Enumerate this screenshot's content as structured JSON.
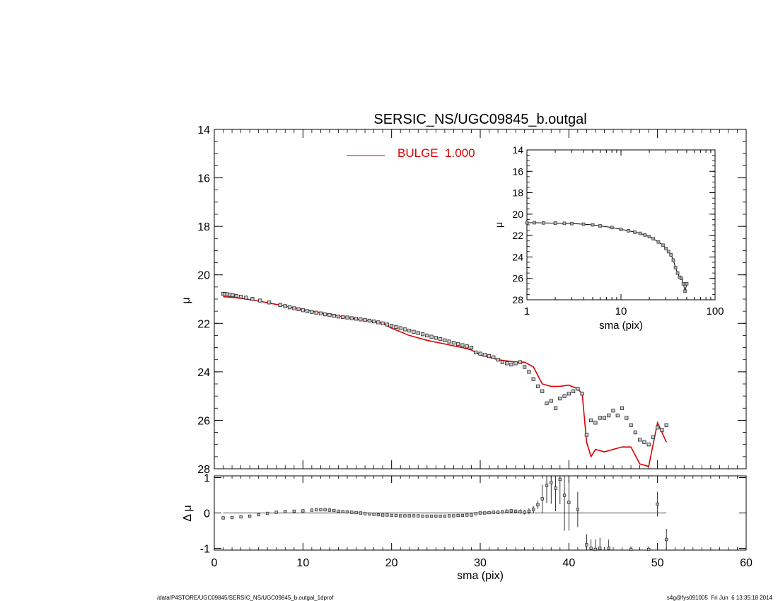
{
  "chart_data": [
    {
      "type": "scatter",
      "panel": "main",
      "title": "SERSIC_NS/UGC09845_b.outgal",
      "xlabel": "sma (pix)",
      "ylabel": "μ",
      "xlim": [
        0,
        60
      ],
      "ylim": [
        28,
        14
      ],
      "y_inverted": true,
      "yticks": [
        "14",
        "16",
        "18",
        "20",
        "22",
        "24",
        "26",
        "28"
      ],
      "xticks": [
        "0",
        "10",
        "20",
        "30",
        "40",
        "50",
        "60"
      ],
      "legend": {
        "position": "top-center",
        "label": "BULGE  1.000",
        "color": "#dd0000"
      },
      "series": [
        {
          "name": "",
          "kind": "data",
          "marker": "square",
          "color": "#000000",
          "x": [
            1.0,
            1.2,
            1.44,
            1.73,
            2.07,
            2.49,
            2.99,
            3.58,
            4.3,
            5.16,
            6.19,
            7.43,
            8.0,
            8.5,
            9.0,
            9.5,
            10.0,
            10.5,
            11.0,
            11.5,
            12.0,
            12.5,
            13.0,
            13.5,
            14.0,
            14.5,
            15.0,
            15.5,
            16.0,
            16.5,
            17.0,
            17.5,
            18.0,
            18.5,
            19.0,
            19.5,
            20.0,
            20.5,
            21.0,
            21.5,
            22.0,
            22.5,
            23.0,
            23.5,
            24.0,
            24.5,
            25.0,
            25.5,
            26.0,
            26.5,
            27.0,
            27.5,
            28.0,
            28.5,
            29.0,
            29.5,
            30.0,
            30.5,
            31.0,
            31.5,
            32.0,
            32.5,
            33.0,
            33.5,
            34.0,
            34.5,
            35.0,
            35.5,
            36.0,
            36.5,
            37.0,
            37.5,
            38.0,
            38.5,
            39.0,
            39.5,
            40.0,
            40.5,
            41.0,
            41.5,
            42.0,
            42.5,
            43.0,
            43.5,
            44.0,
            44.5,
            45.0,
            45.5,
            46.0,
            46.5,
            47.0,
            47.5,
            48.0,
            48.5,
            49.0,
            49.5,
            50.0,
            50.5,
            51.0
          ],
          "y": [
            20.78,
            20.79,
            20.8,
            20.82,
            20.84,
            20.87,
            20.9,
            20.94,
            20.99,
            21.06,
            21.14,
            21.24,
            21.29,
            21.34,
            21.38,
            21.42,
            21.46,
            21.5,
            21.53,
            21.56,
            21.59,
            21.63,
            21.66,
            21.69,
            21.72,
            21.74,
            21.76,
            21.79,
            21.81,
            21.84,
            21.86,
            21.89,
            21.92,
            21.96,
            22.0,
            22.05,
            22.1,
            22.15,
            22.2,
            22.25,
            22.3,
            22.35,
            22.4,
            22.45,
            22.5,
            22.55,
            22.6,
            22.65,
            22.7,
            22.75,
            22.8,
            22.85,
            22.9,
            22.95,
            23.0,
            23.2,
            23.25,
            23.3,
            23.35,
            23.4,
            23.5,
            23.6,
            23.65,
            23.7,
            23.65,
            23.6,
            23.8,
            24.0,
            24.3,
            24.6,
            24.8,
            25.3,
            25.2,
            25.5,
            25.1,
            25.0,
            24.9,
            24.8,
            24.7,
            24.9,
            26.6,
            26.0,
            26.1,
            25.9,
            25.9,
            25.8,
            25.6,
            25.8,
            25.5,
            25.9,
            26.2,
            26.5,
            26.8,
            26.9,
            27.0,
            26.7,
            26.3,
            26.4,
            26.2
          ],
          "x_mono": [],
          "y_mono": []
        },
        {
          "name": "BULGE  1.000",
          "kind": "model",
          "color": "#dd0000",
          "x": [
            1.0,
            2.0,
            3.0,
            4.0,
            5.0,
            6.0,
            7.0,
            8.0,
            9.0,
            10.0,
            11.0,
            12.0,
            13.0,
            14.0,
            15.0,
            16.0,
            17.0,
            18.0,
            19.0,
            20.0,
            21.0,
            22.0,
            23.0,
            24.0,
            25.0,
            26.0,
            27.0,
            28.0,
            29.0,
            30.0,
            31.0,
            32.0,
            33.0,
            34.0,
            35.0,
            36.0,
            37.0,
            38.0,
            39.0,
            40.0,
            41.0,
            41.5,
            42.0,
            42.5,
            43.0,
            44.0,
            45.0,
            46.0,
            47.0,
            48.0,
            49.0,
            50.0,
            51.0
          ],
          "y": [
            20.9,
            20.93,
            20.97,
            21.02,
            21.08,
            21.15,
            21.22,
            21.29,
            21.36,
            21.43,
            21.5,
            21.57,
            21.63,
            21.7,
            21.76,
            21.82,
            21.87,
            21.92,
            22.0,
            22.2,
            22.35,
            22.5,
            22.6,
            22.7,
            22.78,
            22.85,
            22.93,
            23.0,
            23.1,
            23.3,
            23.4,
            23.5,
            23.55,
            23.6,
            23.6,
            23.8,
            24.5,
            24.6,
            24.6,
            24.55,
            24.7,
            24.9,
            26.9,
            27.5,
            27.2,
            27.3,
            27.2,
            27.1,
            27.1,
            27.8,
            27.9,
            26.1,
            26.9
          ]
        }
      ]
    },
    {
      "type": "scatter",
      "panel": "inset",
      "title": "",
      "xlabel": "sma (pix)",
      "ylabel": "μ",
      "xscale": "log",
      "xlim": [
        1,
        100
      ],
      "ylim": [
        28,
        14
      ],
      "y_inverted": true,
      "yticks": [
        "14",
        "16",
        "18",
        "20",
        "22",
        "24",
        "26",
        "28"
      ],
      "xticks": [
        "1",
        "10",
        "100"
      ],
      "series": [
        {
          "name": "",
          "x": [
            1.0,
            1.2,
            1.5,
            2.0,
            2.5,
            3.0,
            4.0,
            5.0,
            6.0,
            8.0,
            10.0,
            12.0,
            14.0,
            16.0,
            18.0,
            20.0,
            22.0,
            25.0,
            28.0,
            30.0,
            32.0,
            34.0,
            36.0,
            38.0,
            40.0,
            42.0,
            44.0,
            46.0,
            48.0,
            50.0
          ],
          "y": [
            20.8,
            20.8,
            20.82,
            20.84,
            20.86,
            20.88,
            20.94,
            21.0,
            21.1,
            21.25,
            21.42,
            21.55,
            21.68,
            21.8,
            21.95,
            22.1,
            22.3,
            22.6,
            22.9,
            23.2,
            23.5,
            23.8,
            24.3,
            25.0,
            25.5,
            25.9,
            26.0,
            26.5,
            27.2,
            26.5
          ]
        }
      ]
    },
    {
      "type": "scatter",
      "panel": "residual",
      "title": "",
      "xlabel": "sma (pix)",
      "ylabel": "Δ μ",
      "xlim": [
        0,
        60
      ],
      "ylim": [
        -1.05,
        1.05
      ],
      "yticks": [
        "-1",
        "0",
        "1"
      ],
      "xticks": [
        "0",
        "10",
        "20",
        "30",
        "40",
        "50",
        "60"
      ],
      "series": [
        {
          "name": "",
          "x": [
            1.0,
            2.0,
            3.0,
            4.0,
            5.0,
            6.0,
            7.0,
            8.0,
            9.0,
            10.0,
            11.0,
            11.5,
            12.0,
            12.5,
            13.0,
            13.5,
            14.0,
            14.5,
            15.0,
            15.5,
            16.0,
            16.5,
            17.0,
            17.5,
            18.0,
            18.5,
            19.0,
            19.5,
            20.0,
            20.5,
            21.0,
            21.5,
            22.0,
            22.5,
            23.0,
            23.5,
            24.0,
            24.5,
            25.0,
            25.5,
            26.0,
            26.5,
            27.0,
            27.5,
            28.0,
            28.5,
            29.0,
            29.5,
            30.0,
            30.5,
            31.0,
            31.5,
            32.0,
            32.5,
            33.0,
            33.5,
            34.0,
            34.5,
            35.0,
            35.5,
            36.0,
            36.5,
            37.0,
            37.5,
            38.0,
            38.5,
            39.0,
            39.5,
            40.0,
            41.0,
            42.0,
            42.5,
            43.0,
            43.5,
            44.5,
            47.0,
            49.0,
            50.0,
            51.0
          ],
          "y": [
            -0.14,
            -0.13,
            -0.11,
            -0.09,
            -0.05,
            -0.01,
            0.02,
            0.04,
            0.05,
            0.06,
            0.08,
            0.09,
            0.09,
            0.09,
            0.08,
            0.07,
            0.05,
            0.04,
            0.03,
            0.02,
            0.01,
            0.0,
            -0.02,
            -0.03,
            -0.04,
            -0.05,
            -0.06,
            -0.06,
            -0.07,
            -0.07,
            -0.08,
            -0.08,
            -0.08,
            -0.08,
            -0.08,
            -0.09,
            -0.09,
            -0.09,
            -0.09,
            -0.09,
            -0.09,
            -0.08,
            -0.08,
            -0.07,
            -0.07,
            -0.06,
            -0.06,
            -0.02,
            0.0,
            0.0,
            0.01,
            0.02,
            0.02,
            0.03,
            0.05,
            0.06,
            0.05,
            0.04,
            0.02,
            0.05,
            0.1,
            0.23,
            0.4,
            0.78,
            0.86,
            0.7,
            0.95,
            0.5,
            0.3,
            0.1,
            -0.9,
            -1.0,
            -1.05,
            -1.0,
            -1.0,
            -1.05,
            -1.05,
            0.25,
            -0.75
          ],
          "err": [
            0.01,
            0.01,
            0.01,
            0.01,
            0.01,
            0.01,
            0.01,
            0.01,
            0.01,
            0.01,
            0.01,
            0.01,
            0.01,
            0.01,
            0.01,
            0.01,
            0.01,
            0.01,
            0.01,
            0.01,
            0.01,
            0.01,
            0.01,
            0.01,
            0.01,
            0.01,
            0.01,
            0.01,
            0.01,
            0.01,
            0.01,
            0.01,
            0.01,
            0.01,
            0.01,
            0.01,
            0.01,
            0.01,
            0.01,
            0.01,
            0.01,
            0.01,
            0.01,
            0.01,
            0.01,
            0.01,
            0.01,
            0.03,
            0.03,
            0.03,
            0.04,
            0.04,
            0.05,
            0.05,
            0.05,
            0.05,
            0.05,
            0.06,
            0.06,
            0.08,
            0.1,
            0.12,
            0.4,
            0.5,
            0.6,
            0.65,
            0.7,
            1.0,
            0.8,
            0.5,
            0.3,
            0.25,
            0.3,
            0.3,
            0.25,
            0.1,
            0.1,
            0.35,
            0.3
          ]
        }
      ]
    }
  ],
  "footer": {
    "left": "/data/P4STORE/UGC09845/SERSIC_NS/UGC09845_b.outgal_1dprof",
    "right": "s4g@fys091005  Fri Jun  6 13:35:18 2014"
  }
}
